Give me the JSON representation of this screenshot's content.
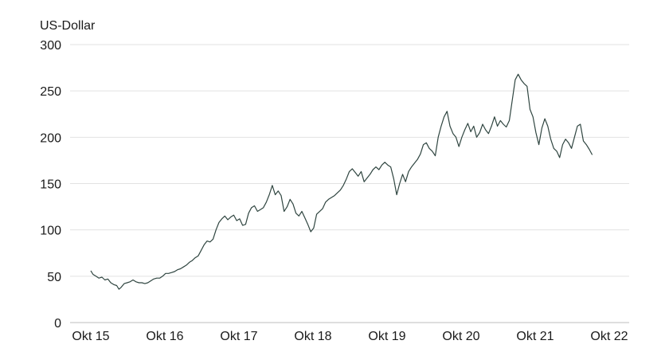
{
  "chart_data": {
    "type": "line",
    "title": "",
    "ylabel": "US-Dollar",
    "xlabel": "",
    "ylim": [
      0,
      300
    ],
    "yticks": [
      0,
      50,
      100,
      150,
      200,
      250,
      300
    ],
    "xlim": [
      2015.75,
      2022.75
    ],
    "xticks": [
      {
        "value": 2015.75,
        "label": "Okt 15"
      },
      {
        "value": 2016.75,
        "label": "Okt 16"
      },
      {
        "value": 2017.75,
        "label": "Okt 17"
      },
      {
        "value": 2018.75,
        "label": "Okt 18"
      },
      {
        "value": 2019.75,
        "label": "Okt 19"
      },
      {
        "value": 2020.75,
        "label": "Okt 20"
      },
      {
        "value": 2021.75,
        "label": "Okt 21"
      },
      {
        "value": 2022.75,
        "label": "Okt 22"
      }
    ],
    "grid": true,
    "line_color": "#2f4540",
    "series": [
      {
        "points": [
          [
            2015.75,
            56
          ],
          [
            2015.78,
            52
          ],
          [
            2015.82,
            50
          ],
          [
            2015.86,
            48
          ],
          [
            2015.9,
            49
          ],
          [
            2015.94,
            46
          ],
          [
            2015.98,
            47
          ],
          [
            2016.02,
            43
          ],
          [
            2016.06,
            41
          ],
          [
            2016.1,
            40
          ],
          [
            2016.13,
            36
          ],
          [
            2016.16,
            38
          ],
          [
            2016.2,
            42
          ],
          [
            2016.24,
            43
          ],
          [
            2016.28,
            44
          ],
          [
            2016.32,
            46
          ],
          [
            2016.36,
            44
          ],
          [
            2016.4,
            43
          ],
          [
            2016.44,
            43
          ],
          [
            2016.48,
            42
          ],
          [
            2016.52,
            43
          ],
          [
            2016.56,
            45
          ],
          [
            2016.6,
            47
          ],
          [
            2016.64,
            48
          ],
          [
            2016.68,
            48
          ],
          [
            2016.72,
            50
          ],
          [
            2016.76,
            53
          ],
          [
            2016.8,
            53
          ],
          [
            2016.84,
            54
          ],
          [
            2016.88,
            55
          ],
          [
            2016.92,
            57
          ],
          [
            2016.96,
            58
          ],
          [
            2017.0,
            60
          ],
          [
            2017.04,
            62
          ],
          [
            2017.08,
            65
          ],
          [
            2017.12,
            67
          ],
          [
            2017.16,
            70
          ],
          [
            2017.2,
            72
          ],
          [
            2017.24,
            78
          ],
          [
            2017.28,
            84
          ],
          [
            2017.32,
            88
          ],
          [
            2017.36,
            87
          ],
          [
            2017.4,
            90
          ],
          [
            2017.44,
            100
          ],
          [
            2017.48,
            108
          ],
          [
            2017.52,
            112
          ],
          [
            2017.56,
            115
          ],
          [
            2017.6,
            111
          ],
          [
            2017.64,
            114
          ],
          [
            2017.68,
            116
          ],
          [
            2017.72,
            110
          ],
          [
            2017.76,
            112
          ],
          [
            2017.8,
            105
          ],
          [
            2017.84,
            106
          ],
          [
            2017.88,
            118
          ],
          [
            2017.92,
            124
          ],
          [
            2017.96,
            126
          ],
          [
            2018.0,
            120
          ],
          [
            2018.04,
            122
          ],
          [
            2018.08,
            124
          ],
          [
            2018.12,
            130
          ],
          [
            2018.16,
            138
          ],
          [
            2018.2,
            148
          ],
          [
            2018.24,
            138
          ],
          [
            2018.28,
            142
          ],
          [
            2018.32,
            137
          ],
          [
            2018.36,
            120
          ],
          [
            2018.4,
            125
          ],
          [
            2018.44,
            133
          ],
          [
            2018.48,
            128
          ],
          [
            2018.52,
            118
          ],
          [
            2018.56,
            115
          ],
          [
            2018.6,
            120
          ],
          [
            2018.64,
            113
          ],
          [
            2018.68,
            106
          ],
          [
            2018.72,
            98
          ],
          [
            2018.76,
            102
          ],
          [
            2018.8,
            117
          ],
          [
            2018.84,
            120
          ],
          [
            2018.88,
            123
          ],
          [
            2018.92,
            130
          ],
          [
            2018.96,
            133
          ],
          [
            2019.0,
            135
          ],
          [
            2019.04,
            137
          ],
          [
            2019.08,
            140
          ],
          [
            2019.12,
            143
          ],
          [
            2019.16,
            148
          ],
          [
            2019.2,
            155
          ],
          [
            2019.24,
            163
          ],
          [
            2019.28,
            166
          ],
          [
            2019.32,
            162
          ],
          [
            2019.36,
            158
          ],
          [
            2019.4,
            163
          ],
          [
            2019.44,
            152
          ],
          [
            2019.48,
            156
          ],
          [
            2019.52,
            160
          ],
          [
            2019.56,
            165
          ],
          [
            2019.6,
            168
          ],
          [
            2019.64,
            165
          ],
          [
            2019.68,
            170
          ],
          [
            2019.72,
            173
          ],
          [
            2019.76,
            170
          ],
          [
            2019.8,
            168
          ],
          [
            2019.84,
            155
          ],
          [
            2019.88,
            138
          ],
          [
            2019.92,
            150
          ],
          [
            2019.96,
            160
          ],
          [
            2020.0,
            152
          ],
          [
            2020.04,
            163
          ],
          [
            2020.08,
            168
          ],
          [
            2020.12,
            172
          ],
          [
            2020.16,
            176
          ],
          [
            2020.2,
            182
          ],
          [
            2020.24,
            192
          ],
          [
            2020.28,
            194
          ],
          [
            2020.32,
            188
          ],
          [
            2020.36,
            185
          ],
          [
            2020.4,
            180
          ],
          [
            2020.44,
            200
          ],
          [
            2020.48,
            212
          ],
          [
            2020.52,
            222
          ],
          [
            2020.56,
            228
          ],
          [
            2020.6,
            212
          ],
          [
            2020.64,
            204
          ],
          [
            2020.68,
            200
          ],
          [
            2020.72,
            190
          ],
          [
            2020.76,
            200
          ],
          [
            2020.8,
            208
          ],
          [
            2020.84,
            215
          ],
          [
            2020.88,
            206
          ],
          [
            2020.92,
            212
          ],
          [
            2020.96,
            200
          ],
          [
            2021.0,
            205
          ],
          [
            2021.04,
            214
          ],
          [
            2021.08,
            208
          ],
          [
            2021.12,
            204
          ],
          [
            2021.16,
            212
          ],
          [
            2021.2,
            222
          ],
          [
            2021.24,
            212
          ],
          [
            2021.28,
            218
          ],
          [
            2021.32,
            214
          ],
          [
            2021.36,
            211
          ],
          [
            2021.4,
            218
          ],
          [
            2021.44,
            240
          ],
          [
            2021.48,
            262
          ],
          [
            2021.52,
            268
          ],
          [
            2021.56,
            262
          ],
          [
            2021.6,
            258
          ],
          [
            2021.64,
            255
          ],
          [
            2021.68,
            230
          ],
          [
            2021.72,
            222
          ],
          [
            2021.76,
            205
          ],
          [
            2021.8,
            192
          ],
          [
            2021.84,
            210
          ],
          [
            2021.88,
            220
          ],
          [
            2021.92,
            212
          ],
          [
            2021.96,
            198
          ],
          [
            2022.0,
            188
          ],
          [
            2022.04,
            185
          ],
          [
            2022.08,
            178
          ],
          [
            2022.12,
            192
          ],
          [
            2022.16,
            198
          ],
          [
            2022.2,
            194
          ],
          [
            2022.24,
            188
          ],
          [
            2022.28,
            200
          ],
          [
            2022.32,
            212
          ],
          [
            2022.36,
            214
          ],
          [
            2022.4,
            196
          ],
          [
            2022.44,
            192
          ],
          [
            2022.48,
            187
          ],
          [
            2022.52,
            181
          ]
        ]
      }
    ]
  }
}
